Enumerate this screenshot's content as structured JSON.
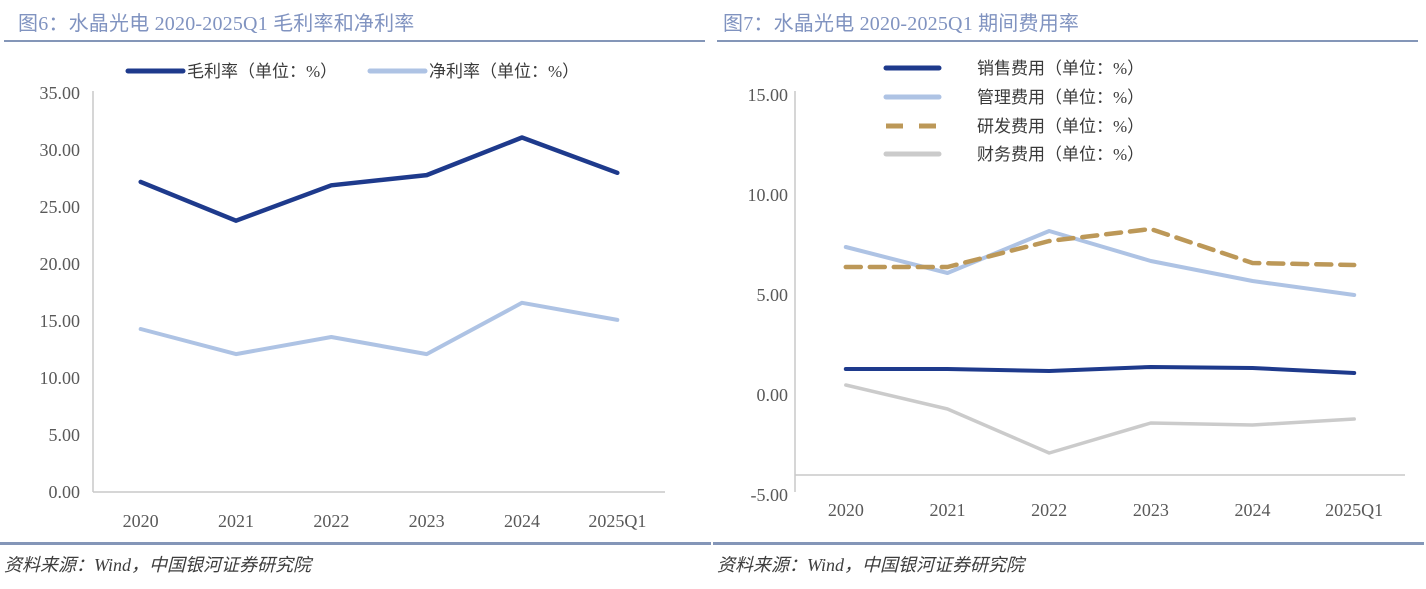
{
  "figures": [
    {
      "title": "图6：水晶光电 2020-2025Q1 毛利率和净利率",
      "source": "资料来源：Wind，中国银河证券研究院",
      "chart_data": {
        "type": "line",
        "categories": [
          "2020",
          "2021",
          "2022",
          "2023",
          "2024",
          "2025Q1"
        ],
        "series": [
          {
            "name": "毛利率（单位：%）",
            "color": "#1E3A8C",
            "line_style": "solid",
            "values": [
              27.2,
              23.8,
              26.9,
              27.8,
              31.1,
              28.0
            ]
          },
          {
            "name": "净利率（单位：%）",
            "color": "#AEC3E4",
            "line_style": "solid",
            "values": [
              14.3,
              12.1,
              13.6,
              12.1,
              16.6,
              15.1
            ]
          }
        ],
        "ylim": [
          0,
          35
        ],
        "ytick_step": 5,
        "ytick_labels": [
          "0.00",
          "5.00",
          "10.00",
          "15.00",
          "20.00",
          "25.00",
          "30.00",
          "35.00"
        ],
        "legend_position": "top-horizontal",
        "grid": false
      }
    },
    {
      "title": "图7：水晶光电 2020-2025Q1 期间费用率",
      "source": "资料来源：Wind，中国银河证券研究院",
      "chart_data": {
        "type": "line",
        "categories": [
          "2020",
          "2021",
          "2022",
          "2023",
          "2024",
          "2025Q1"
        ],
        "series": [
          {
            "name": "销售费用（单位：%）",
            "color": "#1E3A8C",
            "line_style": "solid",
            "values": [
              1.3,
              1.3,
              1.2,
              1.4,
              1.35,
              1.1
            ]
          },
          {
            "name": "管理费用（单位：%）",
            "color": "#AEC3E4",
            "line_style": "solid",
            "values": [
              7.4,
              6.1,
              8.2,
              6.7,
              5.7,
              5.0
            ]
          },
          {
            "name": "研发费用（单位：%）",
            "color": "#BC9858",
            "line_style": "dashed",
            "values": [
              6.4,
              6.4,
              7.7,
              8.3,
              6.6,
              6.5
            ]
          },
          {
            "name": "财务费用（单位：%）",
            "color": "#CBCBCB",
            "line_style": "solid",
            "values": [
              0.5,
              -0.7,
              -2.9,
              -1.4,
              -1.5,
              -1.2
            ]
          }
        ],
        "ylim": [
          -5,
          15
        ],
        "ytick_step": 5,
        "ytick_labels": [
          "-5.00",
          "0.00",
          "5.00",
          "10.00",
          "15.00"
        ],
        "legend_position": "top-right-vertical",
        "grid": false
      }
    }
  ],
  "style": {
    "background": "#FFFFFF",
    "title_color": "#8093C0",
    "rule_color": "#8496B8",
    "axis_color": "#C9C9C9",
    "tick_label_color": "#595959",
    "legend_text_color": "#3A3A3A",
    "source_color": "#3D3D3D"
  }
}
